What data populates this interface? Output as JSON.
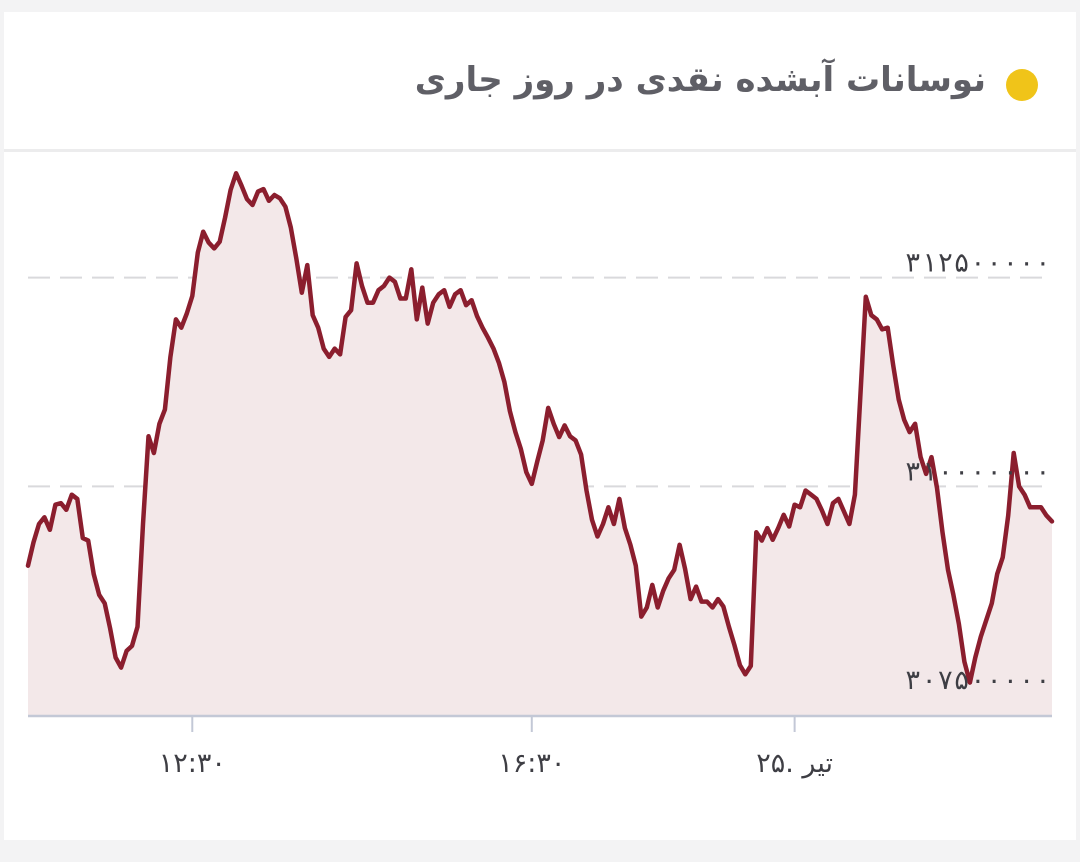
{
  "title": "نوسانات آبشده نقدی در روز جاری",
  "colors": {
    "dot": "#f0c419",
    "line": "#8b1e2e",
    "area": "#f3e8e9",
    "grid": "#d9d9dc",
    "axis": "#c3c8d6"
  },
  "chart_data": {
    "type": "area",
    "title": "نوسانات آبشده نقدی در روز جاری",
    "xlabel": "",
    "ylabel": "",
    "grid": true,
    "y_ticks": [
      {
        "value": 307500000,
        "label": "۳۰۷۵۰۰۰۰۰"
      },
      {
        "value": 310000000,
        "label": "۳۱۰۰۰۰۰۰۰"
      },
      {
        "value": 312500000,
        "label": "۳۱۲۵۰۰۰۰۰"
      }
    ],
    "x_ticks": [
      {
        "index": 30,
        "label": "۱۲:۳۰"
      },
      {
        "index": 92,
        "label": "۱۶:۳۰"
      },
      {
        "index": 140,
        "label": "۲۵. تیر"
      }
    ],
    "index_range": [
      0,
      187
    ],
    "ylim": [
      307250000,
      313250000
    ],
    "series": [
      {
        "points": [
          [
            0,
            309050000
          ],
          [
            1,
            309330000
          ],
          [
            2,
            309550000
          ],
          [
            3,
            309630000
          ],
          [
            4,
            309480000
          ],
          [
            5,
            309780000
          ],
          [
            6,
            309800000
          ],
          [
            7,
            309720000
          ],
          [
            8,
            309900000
          ],
          [
            9,
            309850000
          ],
          [
            10,
            309380000
          ],
          [
            11,
            309350000
          ],
          [
            12,
            308950000
          ],
          [
            13,
            308700000
          ],
          [
            14,
            308600000
          ],
          [
            15,
            308300000
          ],
          [
            16,
            307950000
          ],
          [
            17,
            307830000
          ],
          [
            18,
            308030000
          ],
          [
            19,
            308090000
          ],
          [
            20,
            308320000
          ],
          [
            21,
            309550000
          ],
          [
            22,
            310600000
          ],
          [
            23,
            310400000
          ],
          [
            24,
            310750000
          ],
          [
            25,
            310920000
          ],
          [
            26,
            311550000
          ],
          [
            27,
            312000000
          ],
          [
            28,
            311900000
          ],
          [
            29,
            312070000
          ],
          [
            30,
            312280000
          ],
          [
            31,
            312800000
          ],
          [
            32,
            313050000
          ],
          [
            33,
            312920000
          ],
          [
            34,
            312850000
          ],
          [
            35,
            312930000
          ],
          [
            36,
            313220000
          ],
          [
            37,
            313550000
          ],
          [
            38,
            313750000
          ],
          [
            39,
            313600000
          ],
          [
            40,
            313440000
          ],
          [
            41,
            313370000
          ],
          [
            42,
            313530000
          ],
          [
            43,
            313560000
          ],
          [
            44,
            313420000
          ],
          [
            45,
            313490000
          ],
          [
            46,
            313450000
          ],
          [
            47,
            313350000
          ],
          [
            48,
            313100000
          ],
          [
            49,
            312730000
          ],
          [
            50,
            312320000
          ],
          [
            51,
            312650000
          ],
          [
            52,
            312050000
          ],
          [
            53,
            311900000
          ],
          [
            54,
            311650000
          ],
          [
            55,
            311550000
          ],
          [
            56,
            311650000
          ],
          [
            57,
            311580000
          ],
          [
            58,
            312030000
          ],
          [
            59,
            312110000
          ],
          [
            60,
            312670000
          ],
          [
            61,
            312400000
          ],
          [
            62,
            312200000
          ],
          [
            63,
            312200000
          ],
          [
            64,
            312350000
          ],
          [
            65,
            312400000
          ],
          [
            66,
            312500000
          ],
          [
            67,
            312450000
          ],
          [
            68,
            312250000
          ],
          [
            69,
            312250000
          ],
          [
            70,
            312600000
          ],
          [
            71,
            312000000
          ],
          [
            72,
            312380000
          ],
          [
            73,
            311950000
          ],
          [
            74,
            312200000
          ],
          [
            75,
            312300000
          ],
          [
            76,
            312350000
          ],
          [
            77,
            312150000
          ],
          [
            78,
            312300000
          ],
          [
            79,
            312350000
          ],
          [
            80,
            312170000
          ],
          [
            81,
            312230000
          ],
          [
            82,
            312040000
          ],
          [
            83,
            311900000
          ],
          [
            84,
            311780000
          ],
          [
            85,
            311650000
          ],
          [
            86,
            311480000
          ],
          [
            87,
            311250000
          ],
          [
            88,
            310900000
          ],
          [
            89,
            310650000
          ],
          [
            90,
            310450000
          ],
          [
            91,
            310170000
          ],
          [
            92,
            310030000
          ],
          [
            93,
            310300000
          ],
          [
            94,
            310550000
          ],
          [
            95,
            310940000
          ],
          [
            96,
            310750000
          ],
          [
            97,
            310590000
          ],
          [
            98,
            310730000
          ],
          [
            99,
            310600000
          ],
          [
            100,
            310550000
          ],
          [
            101,
            310380000
          ],
          [
            102,
            309950000
          ],
          [
            103,
            309600000
          ],
          [
            104,
            309400000
          ],
          [
            105,
            309550000
          ],
          [
            106,
            309750000
          ],
          [
            107,
            309550000
          ],
          [
            108,
            309850000
          ],
          [
            109,
            309500000
          ],
          [
            110,
            309300000
          ],
          [
            111,
            309050000
          ],
          [
            112,
            308440000
          ],
          [
            113,
            308550000
          ],
          [
            114,
            308820000
          ],
          [
            115,
            308550000
          ],
          [
            116,
            308750000
          ],
          [
            117,
            308900000
          ],
          [
            118,
            309000000
          ],
          [
            119,
            309300000
          ],
          [
            120,
            309010000
          ],
          [
            121,
            308650000
          ],
          [
            122,
            308800000
          ],
          [
            123,
            308620000
          ],
          [
            124,
            308620000
          ],
          [
            125,
            308550000
          ],
          [
            126,
            308650000
          ],
          [
            127,
            308560000
          ],
          [
            128,
            308320000
          ],
          [
            129,
            308100000
          ],
          [
            130,
            307860000
          ],
          [
            131,
            307750000
          ],
          [
            132,
            307850000
          ],
          [
            133,
            309450000
          ],
          [
            134,
            309350000
          ],
          [
            135,
            309500000
          ],
          [
            136,
            309360000
          ],
          [
            137,
            309500000
          ],
          [
            138,
            309660000
          ],
          [
            139,
            309520000
          ],
          [
            140,
            309780000
          ],
          [
            141,
            309750000
          ],
          [
            142,
            309950000
          ],
          [
            143,
            309900000
          ],
          [
            144,
            309850000
          ],
          [
            145,
            309710000
          ],
          [
            146,
            309550000
          ],
          [
            147,
            309800000
          ],
          [
            148,
            309850000
          ],
          [
            149,
            309700000
          ],
          [
            150,
            309550000
          ],
          [
            151,
            309900000
          ],
          [
            152,
            311070000
          ],
          [
            153,
            312270000
          ],
          [
            154,
            312050000
          ],
          [
            155,
            312000000
          ],
          [
            156,
            311880000
          ],
          [
            157,
            311900000
          ],
          [
            158,
            311450000
          ],
          [
            159,
            311040000
          ],
          [
            160,
            310800000
          ],
          [
            161,
            310650000
          ],
          [
            162,
            310750000
          ],
          [
            163,
            310350000
          ],
          [
            164,
            310150000
          ],
          [
            165,
            310350000
          ],
          [
            166,
            309980000
          ],
          [
            167,
            309450000
          ],
          [
            168,
            309000000
          ],
          [
            169,
            308700000
          ],
          [
            170,
            308350000
          ],
          [
            171,
            307900000
          ],
          [
            172,
            307650000
          ],
          [
            173,
            307950000
          ],
          [
            174,
            308200000
          ],
          [
            175,
            308400000
          ],
          [
            176,
            308600000
          ],
          [
            177,
            308950000
          ],
          [
            178,
            309150000
          ],
          [
            179,
            309650000
          ],
          [
            180,
            310400000
          ],
          [
            181,
            310000000
          ],
          [
            182,
            309900000
          ],
          [
            183,
            309750000
          ],
          [
            184,
            309750000
          ],
          [
            185,
            309750000
          ],
          [
            186,
            309650000
          ],
          [
            187,
            309580000
          ]
        ]
      }
    ]
  }
}
